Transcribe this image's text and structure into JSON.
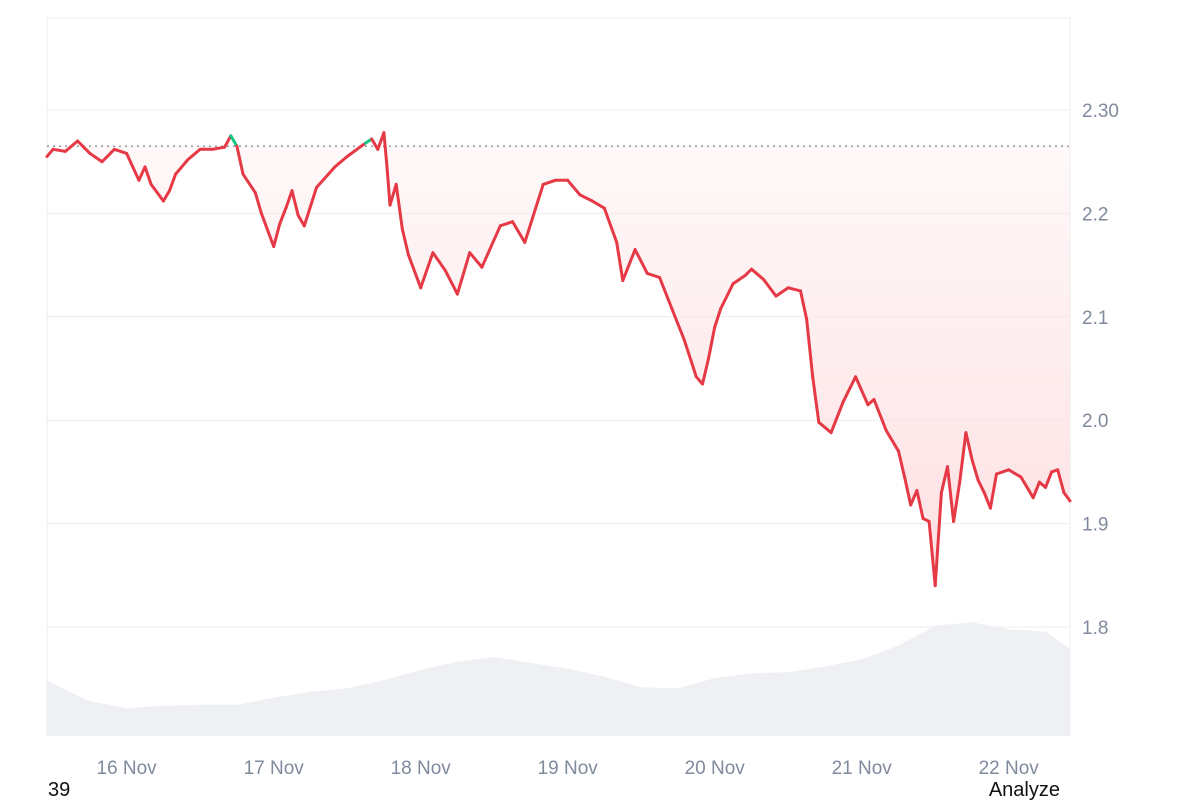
{
  "footer": {
    "left_text": "39",
    "right_text": "Analyze"
  },
  "colors": {
    "down_line": "#e63946",
    "up_line": "#16c784",
    "down_fill": "#fde0e2",
    "volume_fill": "#eef0f3",
    "grid": "#ececec",
    "tick_text": "#808a9d",
    "reference_line": "#8a8f98"
  },
  "chart_data": {
    "type": "line",
    "x_start": "2024-11-15 11:00",
    "x_end": "2024-11-22 10:00",
    "xticks": [
      {
        "label": "16 Nov",
        "date": "2024-11-16 00:00"
      },
      {
        "label": "17 Nov",
        "date": "2024-11-17 00:00"
      },
      {
        "label": "18 Nov",
        "date": "2024-11-18 00:00"
      },
      {
        "label": "19 Nov",
        "date": "2024-11-19 00:00"
      },
      {
        "label": "20 Nov",
        "date": "2024-11-20 00:00"
      },
      {
        "label": "21 Nov",
        "date": "2024-11-21 00:00"
      },
      {
        "label": "22 Nov",
        "date": "2024-11-22 00:00"
      }
    ],
    "yticks": [
      {
        "label": "2.30",
        "value": 2.3
      },
      {
        "label": "2.2",
        "value": 2.2
      },
      {
        "label": "2.1",
        "value": 2.1
      },
      {
        "label": "2.0",
        "value": 2.0
      },
      {
        "label": "1.9",
        "value": 1.9
      },
      {
        "label": "1.8",
        "value": 1.8
      }
    ],
    "reference_value": 2.265,
    "grid": true,
    "series": [
      {
        "points": [
          [
            "2024-11-15 11:00",
            2.255
          ],
          [
            "2024-11-15 12:00",
            2.262
          ],
          [
            "2024-11-15 14:00",
            2.26
          ],
          [
            "2024-11-15 16:00",
            2.27
          ],
          [
            "2024-11-15 18:00",
            2.258
          ],
          [
            "2024-11-15 20:00",
            2.25
          ],
          [
            "2024-11-15 22:00",
            2.262
          ],
          [
            "2024-11-16 00:00",
            2.258
          ],
          [
            "2024-11-16 02:00",
            2.232
          ],
          [
            "2024-11-16 03:00",
            2.245
          ],
          [
            "2024-11-16 04:00",
            2.228
          ],
          [
            "2024-11-16 06:00",
            2.212
          ],
          [
            "2024-11-16 07:00",
            2.222
          ],
          [
            "2024-11-16 08:00",
            2.238
          ],
          [
            "2024-11-16 10:00",
            2.252
          ],
          [
            "2024-11-16 12:00",
            2.262
          ],
          [
            "2024-11-16 14:00",
            2.262
          ],
          [
            "2024-11-16 16:00",
            2.264
          ],
          [
            "2024-11-16 17:00",
            2.275
          ],
          [
            "2024-11-16 18:00",
            2.265
          ],
          [
            "2024-11-16 19:00",
            2.238
          ],
          [
            "2024-11-16 21:00",
            2.22
          ],
          [
            "2024-11-16 22:00",
            2.2
          ],
          [
            "2024-11-17 00:00",
            2.168
          ],
          [
            "2024-11-17 01:00",
            2.19
          ],
          [
            "2024-11-17 02:00",
            2.205
          ],
          [
            "2024-11-17 03:00",
            2.222
          ],
          [
            "2024-11-17 04:00",
            2.198
          ],
          [
            "2024-11-17 05:00",
            2.188
          ],
          [
            "2024-11-17 07:00",
            2.225
          ],
          [
            "2024-11-17 10:00",
            2.245
          ],
          [
            "2024-11-17 12:00",
            2.255
          ],
          [
            "2024-11-17 15:00",
            2.268
          ],
          [
            "2024-11-17 16:00",
            2.272
          ],
          [
            "2024-11-17 17:00",
            2.262
          ],
          [
            "2024-11-17 18:00",
            2.278
          ],
          [
            "2024-11-17 18:30",
            2.245
          ],
          [
            "2024-11-17 19:00",
            2.208
          ],
          [
            "2024-11-17 20:00",
            2.228
          ],
          [
            "2024-11-17 21:00",
            2.185
          ],
          [
            "2024-11-17 22:00",
            2.16
          ],
          [
            "2024-11-18 00:00",
            2.128
          ],
          [
            "2024-11-18 02:00",
            2.162
          ],
          [
            "2024-11-18 04:00",
            2.145
          ],
          [
            "2024-11-18 06:00",
            2.122
          ],
          [
            "2024-11-18 08:00",
            2.162
          ],
          [
            "2024-11-18 10:00",
            2.148
          ],
          [
            "2024-11-18 13:00",
            2.188
          ],
          [
            "2024-11-18 15:00",
            2.192
          ],
          [
            "2024-11-18 17:00",
            2.172
          ],
          [
            "2024-11-18 20:00",
            2.228
          ],
          [
            "2024-11-18 22:00",
            2.232
          ],
          [
            "2024-11-19 00:00",
            2.232
          ],
          [
            "2024-11-19 02:00",
            2.218
          ],
          [
            "2024-11-19 04:00",
            2.212
          ],
          [
            "2024-11-19 06:00",
            2.205
          ],
          [
            "2024-11-19 08:00",
            2.172
          ],
          [
            "2024-11-19 09:00",
            2.135
          ],
          [
            "2024-11-19 11:00",
            2.165
          ],
          [
            "2024-11-19 13:00",
            2.142
          ],
          [
            "2024-11-19 15:00",
            2.138
          ],
          [
            "2024-11-19 17:00",
            2.108
          ],
          [
            "2024-11-19 19:00",
            2.078
          ],
          [
            "2024-11-19 21:00",
            2.042
          ],
          [
            "2024-11-19 22:00",
            2.035
          ],
          [
            "2024-11-19 23:00",
            2.06
          ],
          [
            "2024-11-20 00:00",
            2.09
          ],
          [
            "2024-11-20 01:00",
            2.108
          ],
          [
            "2024-11-20 03:00",
            2.132
          ],
          [
            "2024-11-20 05:00",
            2.14
          ],
          [
            "2024-11-20 06:00",
            2.146
          ],
          [
            "2024-11-20 08:00",
            2.136
          ],
          [
            "2024-11-20 10:00",
            2.12
          ],
          [
            "2024-11-20 12:00",
            2.128
          ],
          [
            "2024-11-20 14:00",
            2.125
          ],
          [
            "2024-11-20 15:00",
            2.098
          ],
          [
            "2024-11-20 16:00",
            2.042
          ],
          [
            "2024-11-20 17:00",
            1.998
          ],
          [
            "2024-11-20 19:00",
            1.988
          ],
          [
            "2024-11-20 21:00",
            2.018
          ],
          [
            "2024-11-20 23:00",
            2.042
          ],
          [
            "2024-11-21 01:00",
            2.015
          ],
          [
            "2024-11-21 02:00",
            2.02
          ],
          [
            "2024-11-21 04:00",
            1.99
          ],
          [
            "2024-11-21 06:00",
            1.97
          ],
          [
            "2024-11-21 07:00",
            1.945
          ],
          [
            "2024-11-21 08:00",
            1.918
          ],
          [
            "2024-11-21 09:00",
            1.932
          ],
          [
            "2024-11-21 10:00",
            1.905
          ],
          [
            "2024-11-21 11:00",
            1.902
          ],
          [
            "2024-11-21 12:00",
            1.84
          ],
          [
            "2024-11-21 13:00",
            1.93
          ],
          [
            "2024-11-21 14:00",
            1.955
          ],
          [
            "2024-11-21 15:00",
            1.902
          ],
          [
            "2024-11-21 16:00",
            1.94
          ],
          [
            "2024-11-21 17:00",
            1.988
          ],
          [
            "2024-11-21 18:00",
            1.962
          ],
          [
            "2024-11-21 19:00",
            1.942
          ],
          [
            "2024-11-21 20:00",
            1.93
          ],
          [
            "2024-11-21 21:00",
            1.915
          ],
          [
            "2024-11-21 22:00",
            1.948
          ],
          [
            "2024-11-22 00:00",
            1.952
          ],
          [
            "2024-11-22 02:00",
            1.945
          ],
          [
            "2024-11-22 04:00",
            1.925
          ],
          [
            "2024-11-22 05:00",
            1.94
          ],
          [
            "2024-11-22 06:00",
            1.935
          ],
          [
            "2024-11-22 07:00",
            1.95
          ],
          [
            "2024-11-22 08:00",
            1.952
          ],
          [
            "2024-11-22 09:00",
            1.93
          ],
          [
            "2024-11-22 10:00",
            1.922
          ]
        ]
      }
    ],
    "volume": {
      "points": [
        [
          "2024-11-15 11:00",
          0.48
        ],
        [
          "2024-11-15 14:00",
          0.4
        ],
        [
          "2024-11-15 18:00",
          0.3
        ],
        [
          "2024-11-16 00:00",
          0.24
        ],
        [
          "2024-11-16 06:00",
          0.26
        ],
        [
          "2024-11-16 12:00",
          0.27
        ],
        [
          "2024-11-16 18:00",
          0.27
        ],
        [
          "2024-11-17 00:00",
          0.33
        ],
        [
          "2024-11-17 06:00",
          0.38
        ],
        [
          "2024-11-17 12:00",
          0.41
        ],
        [
          "2024-11-17 18:00",
          0.48
        ],
        [
          "2024-11-18 00:00",
          0.57
        ],
        [
          "2024-11-18 06:00",
          0.64
        ],
        [
          "2024-11-18 12:00",
          0.68
        ],
        [
          "2024-11-18 18:00",
          0.63
        ],
        [
          "2024-11-19 00:00",
          0.58
        ],
        [
          "2024-11-19 06:00",
          0.51
        ],
        [
          "2024-11-19 12:00",
          0.42
        ],
        [
          "2024-11-19 18:00",
          0.41
        ],
        [
          "2024-11-20 00:00",
          0.5
        ],
        [
          "2024-11-20 06:00",
          0.54
        ],
        [
          "2024-11-20 12:00",
          0.55
        ],
        [
          "2024-11-20 18:00",
          0.6
        ],
        [
          "2024-11-21 00:00",
          0.66
        ],
        [
          "2024-11-21 06:00",
          0.78
        ],
        [
          "2024-11-21 12:00",
          0.95
        ],
        [
          "2024-11-21 18:00",
          0.98
        ],
        [
          "2024-11-22 00:00",
          0.92
        ],
        [
          "2024-11-22 06:00",
          0.9
        ],
        [
          "2024-11-22 10:00",
          0.75
        ]
      ]
    }
  }
}
